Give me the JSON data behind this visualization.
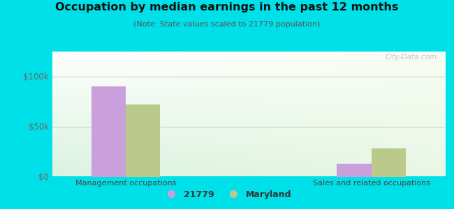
{
  "title": "Occupation by median earnings in the past 12 months",
  "subtitle": "(Note: State values scaled to 21779 population)",
  "categories": [
    "Management occupations",
    "Sales and related occupations"
  ],
  "values_21779": [
    90000,
    13000
  ],
  "values_maryland": [
    72000,
    28000
  ],
  "color_21779": "#c9a0dc",
  "color_maryland": "#bbc98a",
  "legend_21779": "21779",
  "legend_maryland": "Maryland",
  "yticks": [
    0,
    50000,
    100000
  ],
  "ytick_labels": [
    "$0",
    "$50k",
    "$100k"
  ],
  "ylim": [
    0,
    125000
  ],
  "bg_outer": "#00e0e8",
  "grid_color": "#c8d8b8",
  "bar_width": 0.28
}
